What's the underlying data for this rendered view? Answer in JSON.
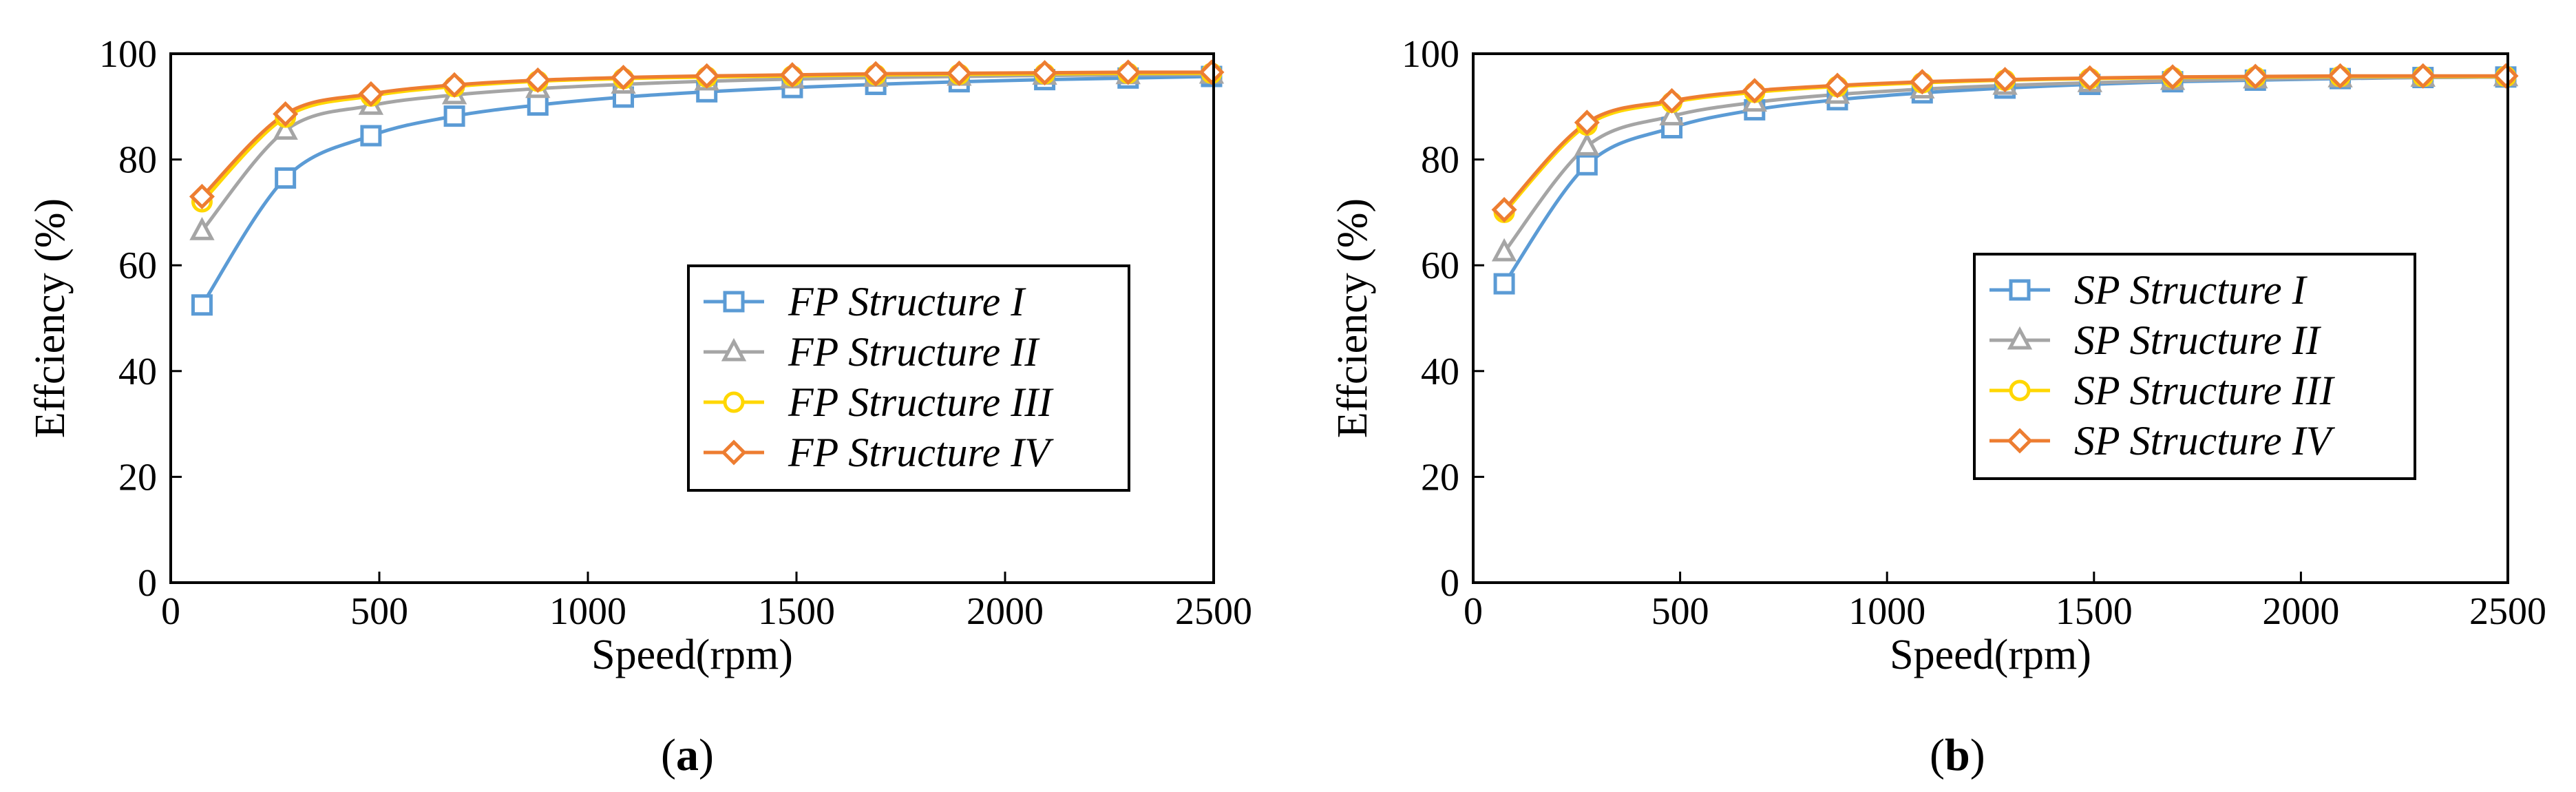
{
  "chart_data": [
    {
      "type": "line",
      "panel_label": "a",
      "title": "",
      "xlabel": "Speed(rpm)",
      "ylabel": "Effciency (%)",
      "xlim": [
        0,
        2500
      ],
      "ylim": [
        0,
        100
      ],
      "xticks": [
        0,
        500,
        1000,
        1500,
        2000,
        2500
      ],
      "yticks": [
        0,
        20,
        40,
        60,
        80,
        100
      ],
      "legend_position": "center-right",
      "x": [
        75,
        275,
        480,
        680,
        880,
        1085,
        1285,
        1490,
        1690,
        1890,
        2095,
        2295,
        2495
      ],
      "series": [
        {
          "name": "FP Structure I",
          "color": "#5b9bd5",
          "marker": "square",
          "values": [
            52.5,
            76.5,
            84.5,
            88.2,
            90.3,
            91.8,
            92.8,
            93.6,
            94.2,
            94.7,
            95.1,
            95.4,
            95.7
          ]
        },
        {
          "name": "FP Structure II",
          "color": "#a5a5a5",
          "marker": "triangle",
          "values": [
            66.5,
            85.5,
            90.2,
            92.2,
            93.4,
            94.2,
            94.8,
            95.2,
            95.5,
            95.7,
            95.9,
            96.0,
            96.1
          ]
        },
        {
          "name": "FP Structure III",
          "color": "#ffd700",
          "marker": "circle",
          "values": [
            72.0,
            88.0,
            92.0,
            93.8,
            94.8,
            95.3,
            95.6,
            95.8,
            96.0,
            96.1,
            96.2,
            96.3,
            96.3
          ]
        },
        {
          "name": "FP Structure IV",
          "color": "#ed7d31",
          "marker": "diamond",
          "values": [
            73.0,
            88.6,
            92.4,
            94.1,
            95.0,
            95.5,
            95.8,
            96.0,
            96.2,
            96.3,
            96.4,
            96.5,
            96.5
          ]
        }
      ]
    },
    {
      "type": "line",
      "panel_label": "b",
      "title": "",
      "xlabel": "Speed(rpm)",
      "ylabel": "Effciency (%)",
      "xlim": [
        0,
        2500
      ],
      "ylim": [
        0,
        100
      ],
      "xticks": [
        0,
        500,
        1000,
        1500,
        2000,
        2500
      ],
      "yticks": [
        0,
        20,
        40,
        60,
        80,
        100
      ],
      "legend_position": "center-right",
      "x": [
        75,
        275,
        480,
        680,
        880,
        1085,
        1285,
        1490,
        1690,
        1890,
        2095,
        2295,
        2495
      ],
      "series": [
        {
          "name": "SP Structure I",
          "color": "#5b9bd5",
          "marker": "square",
          "values": [
            56.5,
            79.0,
            86.0,
            89.4,
            91.3,
            92.6,
            93.5,
            94.2,
            94.7,
            95.0,
            95.3,
            95.5,
            95.6
          ]
        },
        {
          "name": "SP Structure II",
          "color": "#a5a5a5",
          "marker": "triangle",
          "values": [
            62.5,
            82.5,
            88.2,
            90.8,
            92.3,
            93.3,
            94.0,
            94.5,
            94.9,
            95.2,
            95.4,
            95.5,
            95.6
          ]
        },
        {
          "name": "SP Structure III",
          "color": "#ffd700",
          "marker": "circle",
          "values": [
            70.0,
            86.5,
            90.8,
            92.7,
            93.8,
            94.5,
            95.0,
            95.3,
            95.5,
            95.6,
            95.7,
            95.7,
            95.7
          ]
        },
        {
          "name": "SP Structure IV",
          "color": "#ed7d31",
          "marker": "diamond",
          "values": [
            70.5,
            87.0,
            91.1,
            93.0,
            94.0,
            94.7,
            95.1,
            95.4,
            95.6,
            95.7,
            95.8,
            95.8,
            95.8
          ]
        }
      ]
    }
  ]
}
